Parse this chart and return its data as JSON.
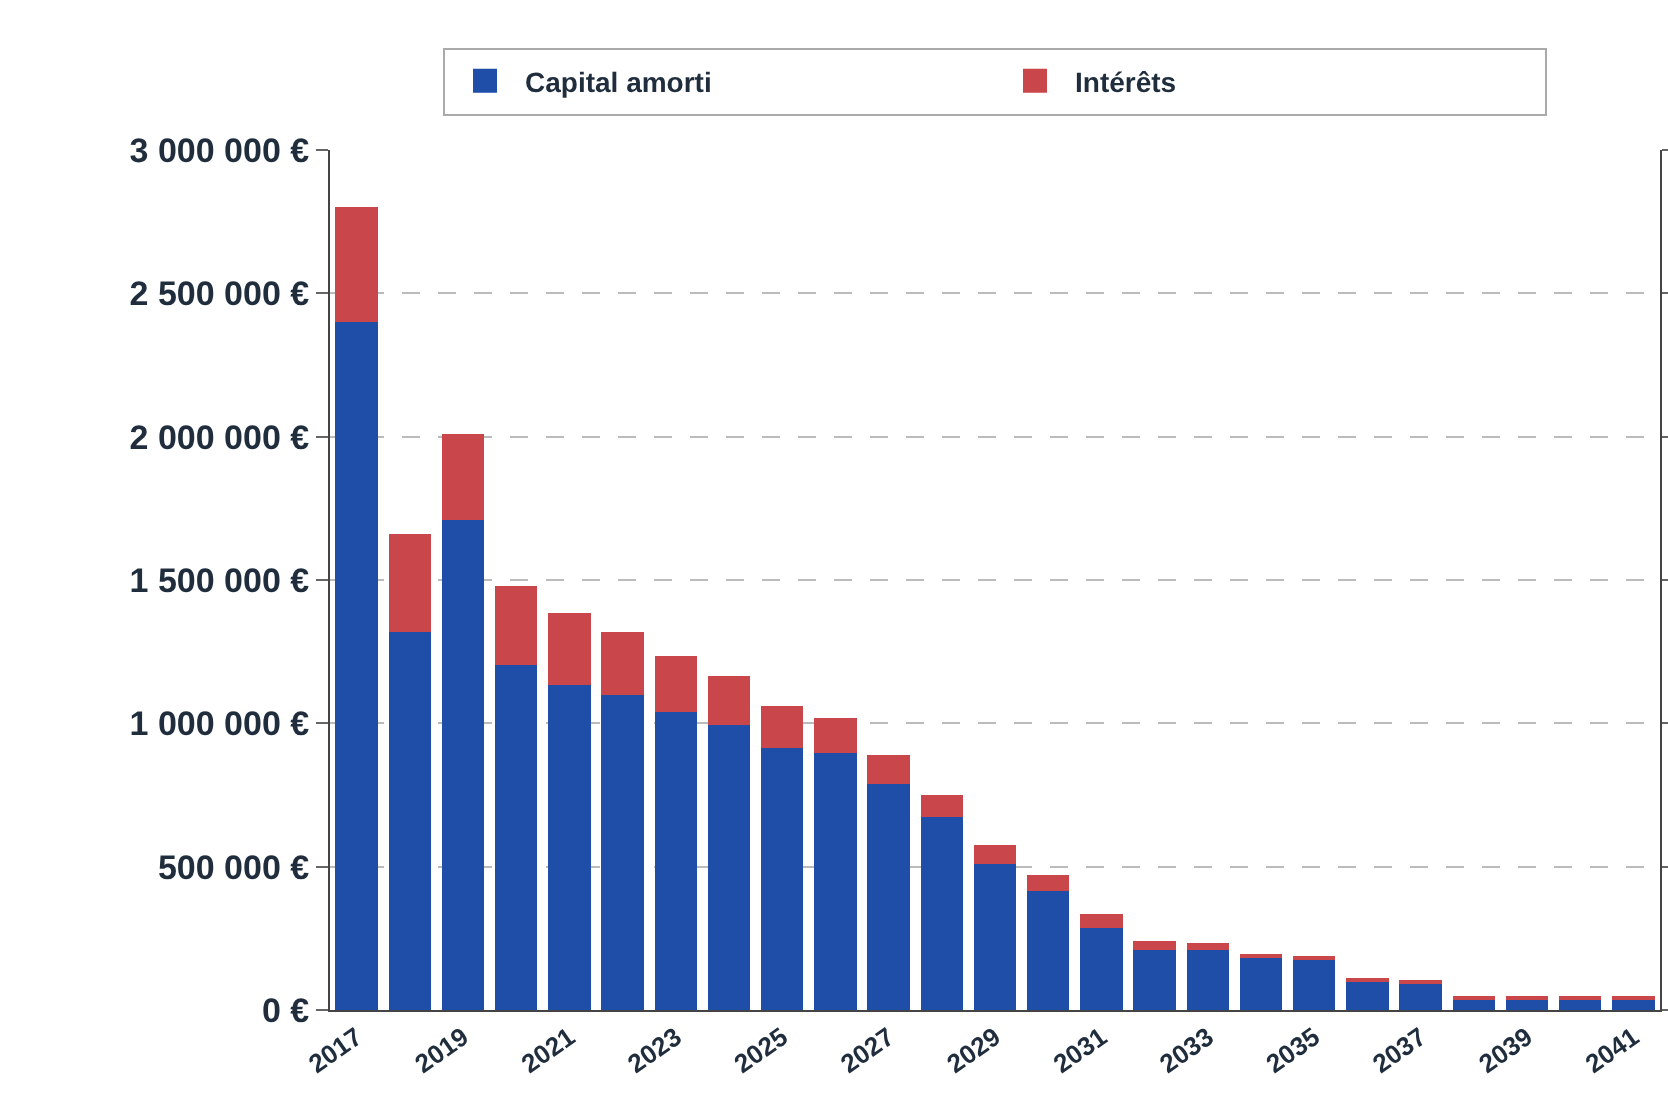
{
  "chart_data": {
    "type": "bar",
    "stacked": true,
    "categories": [
      "2017",
      null,
      "2019",
      null,
      "2021",
      null,
      "2023",
      null,
      "2025",
      null,
      "2027",
      null,
      "2029",
      null,
      "2031",
      null,
      "2033",
      null,
      "2035",
      null,
      "2037",
      null,
      "2039",
      null,
      "2041"
    ],
    "series": [
      {
        "name": "Capital amorti",
        "color": "#1f4ea8",
        "values": [
          2400000,
          1320000,
          1710000,
          1205000,
          1135000,
          1100000,
          1040000,
          995000,
          915000,
          895000,
          790000,
          675000,
          510000,
          415000,
          285000,
          210000,
          210000,
          180000,
          175000,
          100000,
          95000,
          40000,
          40000,
          40000,
          40000
        ]
      },
      {
        "name": "Intérêts",
        "color": "#c9474a",
        "values": [
          400000,
          340000,
          300000,
          275000,
          250000,
          220000,
          195000,
          170000,
          145000,
          125000,
          100000,
          75000,
          65000,
          55000,
          50000,
          30000,
          25000,
          15000,
          8000,
          5000,
          5000,
          2000,
          2000,
          2000,
          2000
        ]
      }
    ],
    "ylim": [
      0,
      3000000
    ],
    "yticks": [
      {
        "value": 0,
        "label": "0 €"
      },
      {
        "value": 500000,
        "label": "500 000 €"
      },
      {
        "value": 1000000,
        "label": "1 000 000 €"
      },
      {
        "value": 1500000,
        "label": "1 500 000 €"
      },
      {
        "value": 2000000,
        "label": "2 000 000 €"
      },
      {
        "value": 2500000,
        "label": "2 500 000 €"
      },
      {
        "value": 3000000,
        "label": "3 000 000 €"
      }
    ],
    "grid": "y",
    "line_style": "dashed",
    "legend": "top"
  }
}
